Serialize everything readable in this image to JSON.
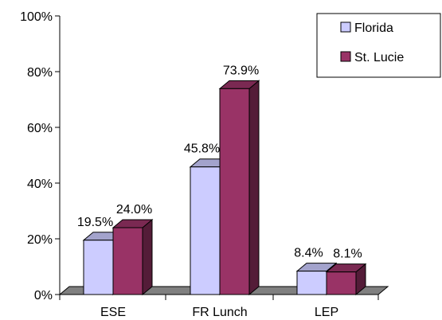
{
  "chart_data": {
    "type": "bar",
    "categories": [
      "ESE",
      "FR Lunch",
      "LEP"
    ],
    "series": [
      {
        "name": "Florida",
        "values": [
          19.5,
          45.8,
          8.4
        ],
        "labels": [
          "19.5%",
          "45.8%",
          "8.4%"
        ],
        "color": "#ccccff"
      },
      {
        "name": "St. Lucie",
        "values": [
          24.0,
          73.9,
          8.1
        ],
        "labels": [
          "24.0%",
          "73.9%",
          "8.1%"
        ],
        "color": "#993366"
      }
    ],
    "ylim": [
      0,
      100
    ],
    "yticks": [
      0,
      20,
      40,
      60,
      80,
      100
    ],
    "ytick_labels": [
      "0%",
      "20%",
      "40%",
      "60%",
      "80%",
      "100%"
    ],
    "grid": false,
    "legend_position": "top-right",
    "style": "3d-clustered"
  }
}
